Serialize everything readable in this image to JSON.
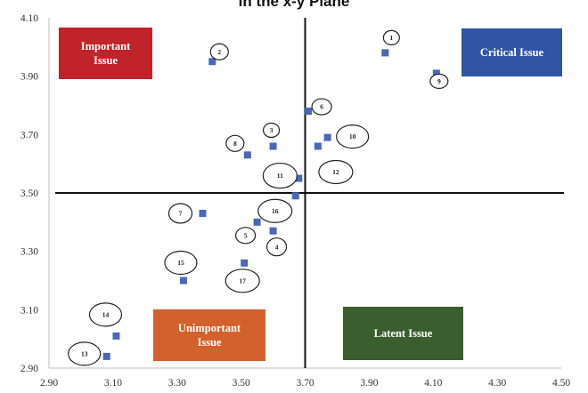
{
  "chart_data": {
    "type": "scatter",
    "title": "in the x-y Plane",
    "xlim": [
      2.9,
      4.5
    ],
    "ylim": [
      2.9,
      4.1
    ],
    "x_ticks": [
      "2.90",
      "3.10",
      "3.30",
      "3.50",
      "3.70",
      "3.90",
      "4.10",
      "4.30",
      "4.50"
    ],
    "y_ticks": [
      "2.90",
      "3.10",
      "3.30",
      "3.50",
      "3.70",
      "3.90",
      "4.10"
    ],
    "threshold_x": 3.7,
    "threshold_y": 3.5,
    "point_color": "#4a67b8",
    "grid": false,
    "points": [
      {
        "label": "1",
        "x": 3.95,
        "y": 3.98
      },
      {
        "label": "2",
        "x": 3.41,
        "y": 3.95
      },
      {
        "label": "3",
        "x": 3.6,
        "y": 3.66
      },
      {
        "label": "4",
        "x": 3.6,
        "y": 3.37
      },
      {
        "label": "5",
        "x": 3.55,
        "y": 3.4
      },
      {
        "label": "6",
        "x": 3.71,
        "y": 3.78
      },
      {
        "label": "7",
        "x": 3.38,
        "y": 3.43
      },
      {
        "label": "8",
        "x": 3.52,
        "y": 3.63
      },
      {
        "label": "9",
        "x": 4.11,
        "y": 3.91
      },
      {
        "label": "10",
        "x": 3.77,
        "y": 3.69
      },
      {
        "label": "11",
        "x": 3.68,
        "y": 3.55
      },
      {
        "label": "12",
        "x": 3.74,
        "y": 3.66
      },
      {
        "label": "13",
        "x": 3.08,
        "y": 2.94
      },
      {
        "label": "14",
        "x": 3.11,
        "y": 3.01
      },
      {
        "label": "15",
        "x": 3.32,
        "y": 3.2
      },
      {
        "label": "16",
        "x": 3.67,
        "y": 3.49
      },
      {
        "label": "17",
        "x": 3.51,
        "y": 3.26
      }
    ],
    "quadrants": [
      {
        "label": "Important\nIssue",
        "color": "#c0242a"
      },
      {
        "label": "Critical Issue",
        "color": "#2f55a4"
      },
      {
        "label": "Unimportant\nIssue",
        "color": "#d2612b"
      },
      {
        "label": "Latent Issue",
        "color": "#3a5e2d"
      }
    ]
  }
}
